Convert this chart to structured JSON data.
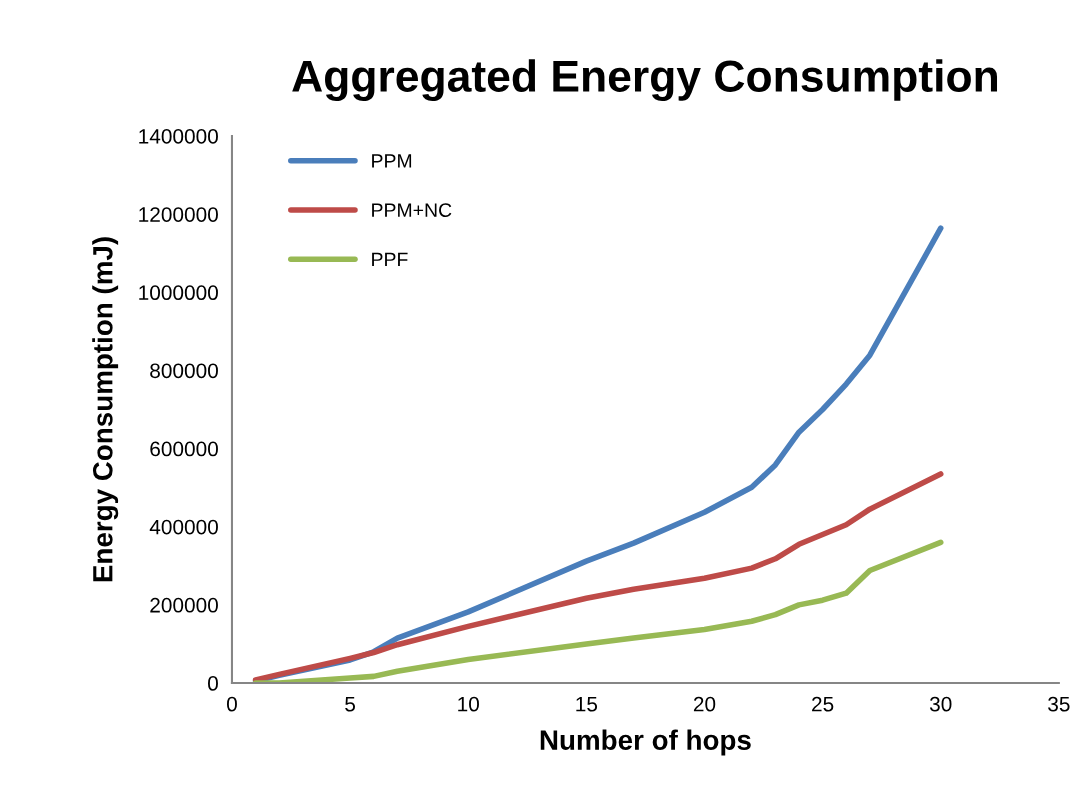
{
  "chart_data": {
    "type": "line",
    "title": "Aggregated Energy Consumption",
    "xlabel": "Number of hops",
    "ylabel": "Energy Consumption (mJ)",
    "x": [
      1,
      2,
      5,
      6,
      7,
      10,
      15,
      17,
      20,
      22,
      23,
      24,
      25,
      26,
      27,
      30
    ],
    "series": [
      {
        "name": "PPM",
        "color": "#4a7ebb",
        "values": [
          5000,
          20000,
          59000,
          80000,
          115000,
          182000,
          312000,
          358000,
          437000,
          501000,
          558000,
          642000,
          700000,
          765000,
          839000,
          1164000
        ]
      },
      {
        "name": "PPM+NC",
        "color": "#be4b48",
        "values": [
          8000,
          22000,
          63000,
          78000,
          98000,
          145000,
          217000,
          240000,
          268000,
          294000,
          318000,
          355000,
          380000,
          405000,
          445000,
          535000
        ]
      },
      {
        "name": "PPF",
        "color": "#98b954",
        "values": [
          0,
          0,
          13000,
          17000,
          30000,
          60000,
          100000,
          115000,
          137000,
          158000,
          175000,
          200000,
          212000,
          230000,
          288000,
          360000
        ]
      }
    ],
    "xlim": [
      0,
      35
    ],
    "xticks": [
      0,
      5,
      10,
      15,
      20,
      25,
      30,
      35
    ],
    "ylim": [
      0,
      1400000
    ],
    "yticks": [
      0,
      200000,
      400000,
      600000,
      800000,
      1000000,
      1200000,
      1400000
    ],
    "grid": false,
    "legend": "top left",
    "marker": "none",
    "line_style": "solid"
  }
}
